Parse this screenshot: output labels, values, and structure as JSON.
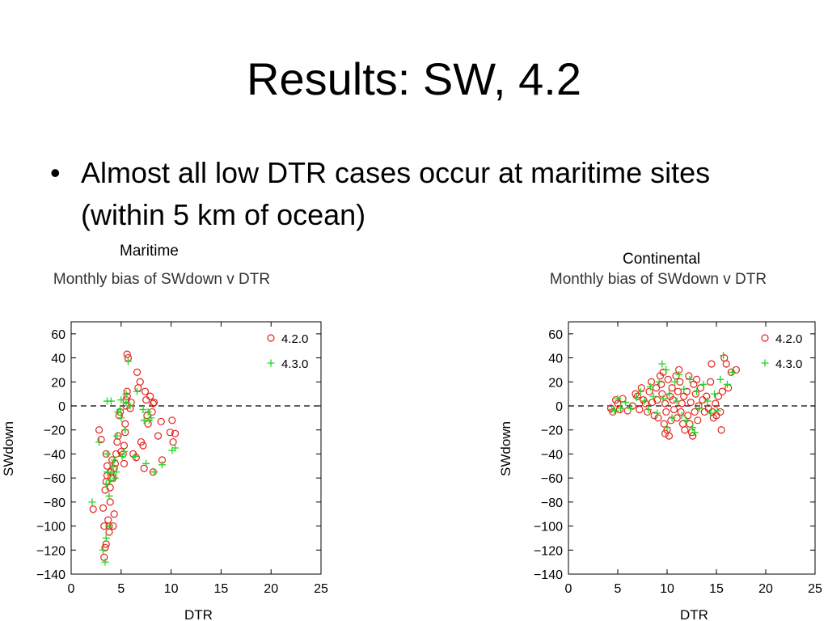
{
  "slide": {
    "title": "Results: SW, 4.2",
    "bullet": "Almost all low DTR cases occur at maritime sites (within 5 km of ocean)"
  },
  "colors": {
    "series_4_2_0": "#e3221c",
    "series_4_3_0": "#1fd61f",
    "axis": "#000000"
  },
  "chart_data": [
    {
      "type": "scatter",
      "caption": "Maritime",
      "title": "Monthly bias of SWdown v DTR",
      "xlabel": "DTR",
      "ylabel": "SWdown",
      "xlim": [
        0,
        25
      ],
      "ylim": [
        -140,
        70
      ],
      "xticks": [
        0,
        5,
        10,
        15,
        20,
        25
      ],
      "yticks": [
        60,
        40,
        20,
        0,
        -20,
        -40,
        -60,
        -80,
        -100,
        -120,
        -140
      ],
      "reference_line": 0,
      "legend_position": "top-right",
      "series": [
        {
          "name": "4.2.0",
          "marker": "circle",
          "points": [
            [
              2.2,
              -86
            ],
            [
              2.8,
              -20
            ],
            [
              3.0,
              -28
            ],
            [
              3.2,
              -85
            ],
            [
              3.3,
              -100
            ],
            [
              3.3,
              -126
            ],
            [
              3.4,
              -118
            ],
            [
              3.5,
              -115
            ],
            [
              3.4,
              -70
            ],
            [
              3.5,
              -63
            ],
            [
              3.6,
              -58
            ],
            [
              3.6,
              -50
            ],
            [
              3.5,
              -40
            ],
            [
              3.8,
              -105
            ],
            [
              3.8,
              -100
            ],
            [
              3.7,
              -95
            ],
            [
              3.9,
              -80
            ],
            [
              3.9,
              -68
            ],
            [
              4.0,
              -60
            ],
            [
              4.0,
              -55
            ],
            [
              4.1,
              -45
            ],
            [
              4.2,
              -100
            ],
            [
              4.3,
              -90
            ],
            [
              4.2,
              -60
            ],
            [
              4.3,
              -52
            ],
            [
              4.4,
              -48
            ],
            [
              4.5,
              -40
            ],
            [
              4.6,
              -30
            ],
            [
              4.7,
              -25
            ],
            [
              4.8,
              -8
            ],
            [
              4.9,
              -5
            ],
            [
              5.0,
              -38
            ],
            [
              5.2,
              -40
            ],
            [
              5.3,
              -48
            ],
            [
              5.3,
              -33
            ],
            [
              5.4,
              -22
            ],
            [
              5.4,
              -15
            ],
            [
              5.5,
              0
            ],
            [
              5.5,
              5
            ],
            [
              5.6,
              8
            ],
            [
              5.6,
              12
            ],
            [
              5.6,
              43
            ],
            [
              5.7,
              40
            ],
            [
              5.9,
              -2
            ],
            [
              6.0,
              3
            ],
            [
              6.2,
              -40
            ],
            [
              6.5,
              -43
            ],
            [
              6.6,
              28
            ],
            [
              6.7,
              15
            ],
            [
              6.9,
              20
            ],
            [
              7.0,
              -30
            ],
            [
              7.2,
              -33
            ],
            [
              7.3,
              -52
            ],
            [
              7.4,
              12
            ],
            [
              7.5,
              5
            ],
            [
              7.6,
              -8
            ],
            [
              7.7,
              -15
            ],
            [
              7.9,
              8
            ],
            [
              8.1,
              -5
            ],
            [
              8.2,
              2
            ],
            [
              8.3,
              3
            ],
            [
              8.2,
              -55
            ],
            [
              8.7,
              -25
            ],
            [
              9.0,
              -13
            ],
            [
              9.1,
              -45
            ],
            [
              9.9,
              -22
            ],
            [
              10.1,
              -12
            ],
            [
              10.2,
              -30
            ],
            [
              10.4,
              -23
            ]
          ]
        },
        {
          "name": "4.3.0",
          "marker": "plus",
          "points": [
            [
              2.1,
              -80
            ],
            [
              2.8,
              -30
            ],
            [
              3.2,
              -120
            ],
            [
              3.4,
              -130
            ],
            [
              3.5,
              -110
            ],
            [
              3.5,
              -65
            ],
            [
              3.6,
              -55
            ],
            [
              3.6,
              -40
            ],
            [
              3.6,
              4
            ],
            [
              3.8,
              -100
            ],
            [
              3.8,
              -75
            ],
            [
              3.9,
              -62
            ],
            [
              4.0,
              -56
            ],
            [
              4.0,
              4
            ],
            [
              4.2,
              -50
            ],
            [
              4.3,
              -45
            ],
            [
              4.4,
              -60
            ],
            [
              4.5,
              -55
            ],
            [
              4.6,
              -25
            ],
            [
              4.7,
              -5
            ],
            [
              4.9,
              -3
            ],
            [
              5.0,
              -10
            ],
            [
              5.0,
              5
            ],
            [
              5.1,
              -42
            ],
            [
              5.3,
              -38
            ],
            [
              5.4,
              -20
            ],
            [
              5.5,
              3
            ],
            [
              5.5,
              10
            ],
            [
              5.7,
              37
            ],
            [
              5.9,
              0
            ],
            [
              6.4,
              -42
            ],
            [
              6.6,
              12
            ],
            [
              7.2,
              -3
            ],
            [
              7.3,
              -12
            ],
            [
              7.5,
              -48
            ],
            [
              7.7,
              -5
            ],
            [
              7.8,
              -12
            ],
            [
              8.0,
              -10
            ],
            [
              8.3,
              -55
            ],
            [
              9.1,
              -49
            ],
            [
              10.1,
              -37
            ],
            [
              10.4,
              -35
            ]
          ]
        }
      ]
    },
    {
      "type": "scatter",
      "caption": "Continental",
      "title": "Monthly bias of SWdown v DTR",
      "xlabel": "DTR",
      "ylabel": "SWdown",
      "xlim": [
        0,
        25
      ],
      "ylim": [
        -140,
        70
      ],
      "xticks": [
        0,
        5,
        10,
        15,
        20,
        25
      ],
      "yticks": [
        60,
        40,
        20,
        0,
        -20,
        -40,
        -60,
        -80,
        -100,
        -120,
        -140
      ],
      "reference_line": 0,
      "legend_position": "top-right",
      "series": [
        {
          "name": "4.2.0",
          "marker": "circle",
          "points": [
            [
              4.3,
              -2
            ],
            [
              4.5,
              -5
            ],
            [
              4.8,
              5
            ],
            [
              5.0,
              2
            ],
            [
              5.2,
              -3
            ],
            [
              5.5,
              6
            ],
            [
              6.0,
              -4
            ],
            [
              6.5,
              0
            ],
            [
              6.8,
              10
            ],
            [
              7.0,
              8
            ],
            [
              7.2,
              -3
            ],
            [
              7.4,
              15
            ],
            [
              7.6,
              5
            ],
            [
              7.8,
              2
            ],
            [
              8.0,
              -5
            ],
            [
              8.2,
              12
            ],
            [
              8.4,
              20
            ],
            [
              8.5,
              3
            ],
            [
              8.7,
              -8
            ],
            [
              8.9,
              15
            ],
            [
              9.0,
              5
            ],
            [
              9.1,
              -10
            ],
            [
              9.3,
              25
            ],
            [
              9.4,
              18
            ],
            [
              9.5,
              10
            ],
            [
              9.6,
              28
            ],
            [
              9.7,
              -15
            ],
            [
              9.8,
              -23
            ],
            [
              9.8,
              2
            ],
            [
              9.9,
              -5
            ],
            [
              10.0,
              -20
            ],
            [
              10.1,
              22
            ],
            [
              10.2,
              -25
            ],
            [
              10.3,
              8
            ],
            [
              10.4,
              -12
            ],
            [
              10.5,
              15
            ],
            [
              10.6,
              5
            ],
            [
              10.7,
              -3
            ],
            [
              10.9,
              25
            ],
            [
              11.0,
              -10
            ],
            [
              11.1,
              12
            ],
            [
              11.2,
              30
            ],
            [
              11.3,
              20
            ],
            [
              11.4,
              -5
            ],
            [
              11.5,
              2
            ],
            [
              11.6,
              -15
            ],
            [
              11.7,
              8
            ],
            [
              11.8,
              -20
            ],
            [
              12.0,
              12
            ],
            [
              12.1,
              -8
            ],
            [
              12.2,
              25
            ],
            [
              12.3,
              -15
            ],
            [
              12.4,
              3
            ],
            [
              12.5,
              -22
            ],
            [
              12.6,
              -25
            ],
            [
              12.7,
              18
            ],
            [
              12.8,
              -5
            ],
            [
              12.9,
              10
            ],
            [
              13.0,
              22
            ],
            [
              13.1,
              -12
            ],
            [
              13.2,
              0
            ],
            [
              13.4,
              15
            ],
            [
              13.6,
              5
            ],
            [
              13.8,
              -5
            ],
            [
              14.0,
              8
            ],
            [
              14.2,
              -2
            ],
            [
              14.4,
              20
            ],
            [
              14.5,
              35
            ],
            [
              14.6,
              -5
            ],
            [
              14.7,
              -10
            ],
            [
              14.9,
              2
            ],
            [
              15.0,
              -8
            ],
            [
              15.2,
              8
            ],
            [
              15.4,
              -5
            ],
            [
              15.5,
              -20
            ],
            [
              15.6,
              12
            ],
            [
              15.8,
              40
            ],
            [
              16.0,
              35
            ],
            [
              16.2,
              15
            ],
            [
              16.5,
              28
            ],
            [
              17.0,
              30
            ]
          ]
        },
        {
          "name": "4.3.0",
          "marker": "plus",
          "points": [
            [
              4.4,
              -3
            ],
            [
              4.7,
              -4
            ],
            [
              5.0,
              6
            ],
            [
              5.3,
              -2
            ],
            [
              5.8,
              3
            ],
            [
              6.3,
              -2
            ],
            [
              6.9,
              7
            ],
            [
              7.3,
              12
            ],
            [
              7.7,
              4
            ],
            [
              8.1,
              -3
            ],
            [
              8.3,
              16
            ],
            [
              8.6,
              8
            ],
            [
              9.0,
              -6
            ],
            [
              9.2,
              20
            ],
            [
              9.5,
              35
            ],
            [
              9.6,
              6
            ],
            [
              9.9,
              30
            ],
            [
              10.0,
              -18
            ],
            [
              10.2,
              10
            ],
            [
              10.5,
              -10
            ],
            [
              10.8,
              20
            ],
            [
              11.0,
              4
            ],
            [
              11.2,
              26
            ],
            [
              11.5,
              -8
            ],
            [
              11.7,
              14
            ],
            [
              12.0,
              -12
            ],
            [
              12.3,
              22
            ],
            [
              12.6,
              -18
            ],
            [
              12.8,
              -22
            ],
            [
              13.0,
              12
            ],
            [
              13.3,
              -2
            ],
            [
              13.7,
              18
            ],
            [
              14.1,
              4
            ],
            [
              14.4,
              -6
            ],
            [
              14.8,
              10
            ],
            [
              15.1,
              -4
            ],
            [
              15.4,
              22
            ],
            [
              15.7,
              42
            ],
            [
              16.1,
              18
            ],
            [
              16.6,
              28
            ]
          ]
        }
      ]
    }
  ]
}
